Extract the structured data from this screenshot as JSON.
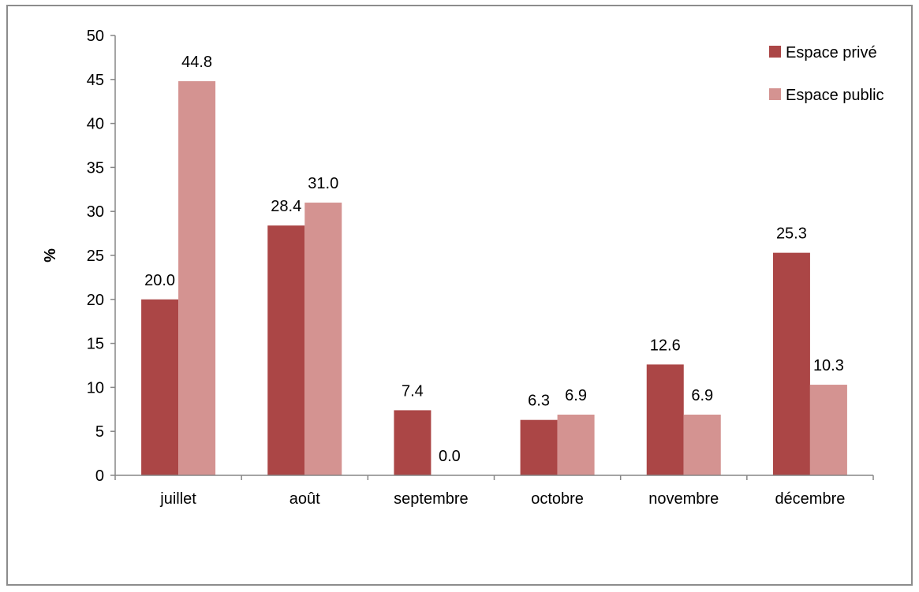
{
  "chart_data": {
    "type": "bar",
    "title": "",
    "xlabel": "",
    "ylabel": "%",
    "ylim": [
      0,
      50
    ],
    "ytick_step": 5,
    "categories": [
      "juillet",
      "août",
      "septembre",
      "octobre",
      "novembre",
      "décembre"
    ],
    "series": [
      {
        "name": "Espace privé",
        "color": "#ab4646",
        "values": [
          20.0,
          28.4,
          7.4,
          6.3,
          12.6,
          25.3
        ]
      },
      {
        "name": "Espace public",
        "color": "#d49391",
        "values": [
          44.8,
          31.0,
          0.0,
          6.9,
          6.9,
          10.3
        ]
      }
    ],
    "legend_position": "top-right",
    "grid": false,
    "value_decimals": 1
  }
}
